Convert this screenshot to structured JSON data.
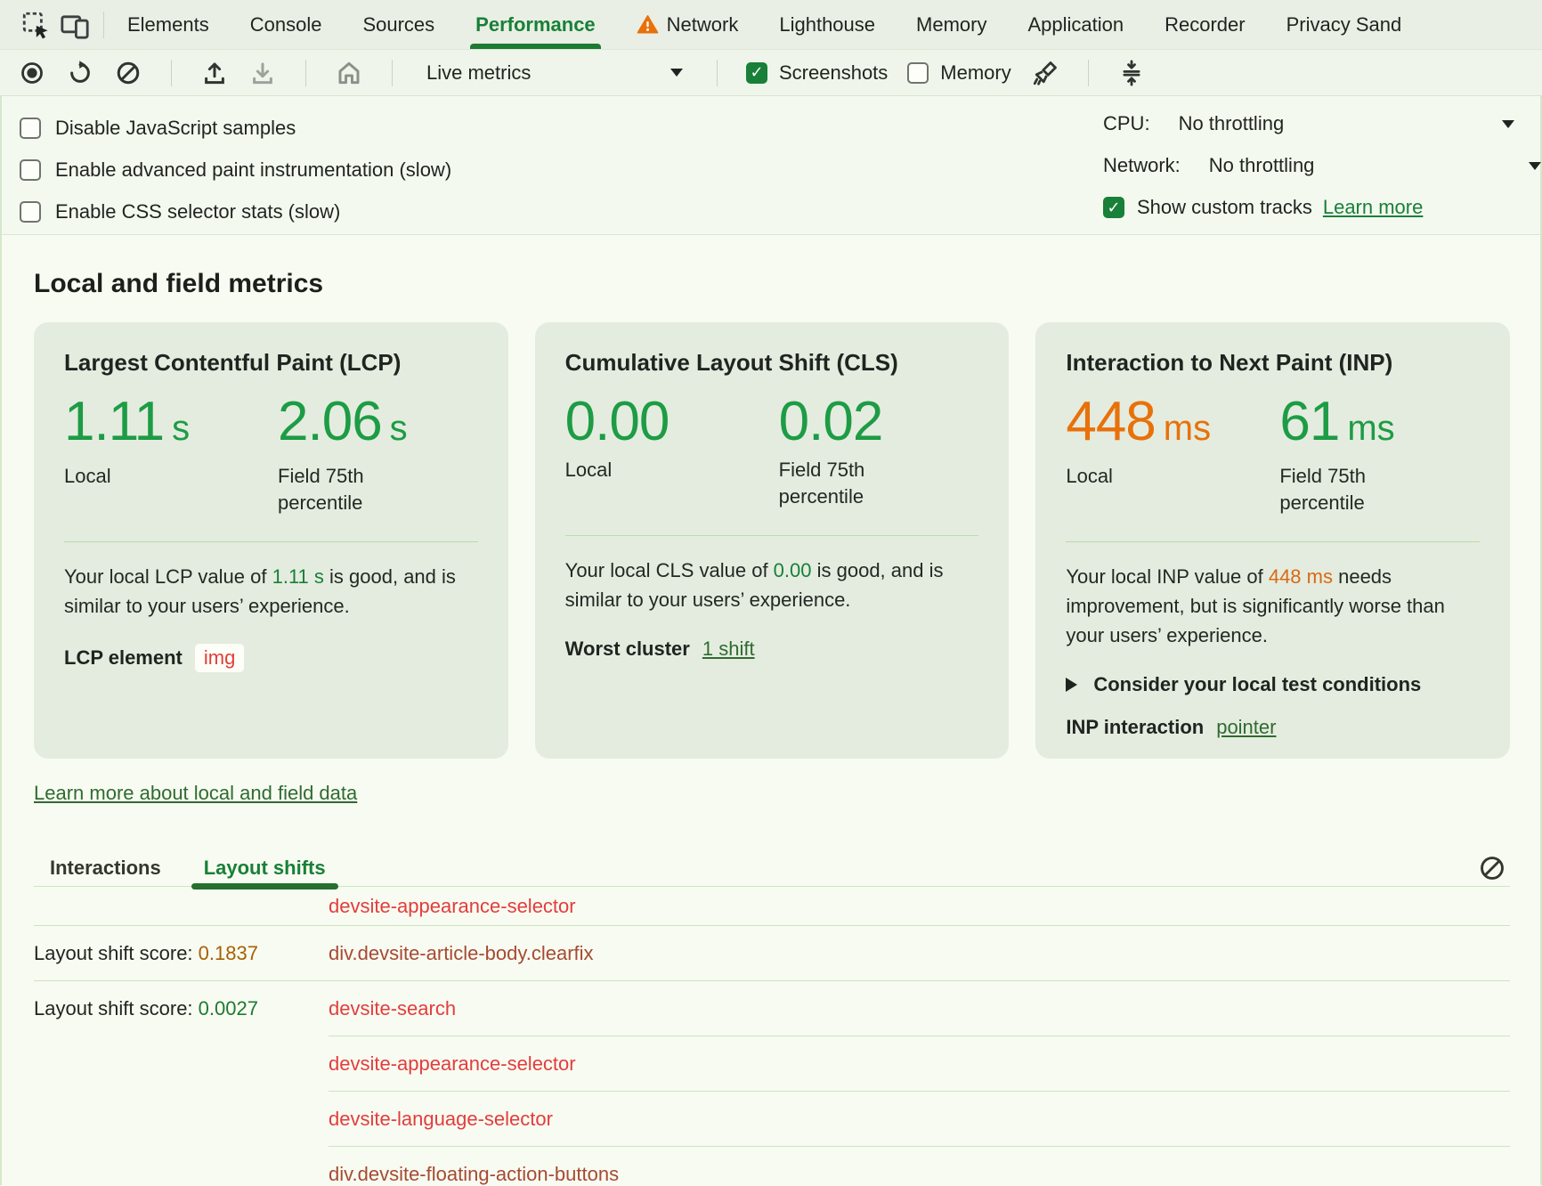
{
  "colors": {
    "accent_green": "#188038",
    "big_value_green": "#1d9c45",
    "big_value_orange": "#e8710a",
    "score_warn": "#a96000",
    "score_good": "#1d7a33",
    "node_link_red": "#e23d3d",
    "node_link_dark_red": "#a64a32",
    "card_background": "#e4ecdf",
    "panel_background": "#f8fbf1"
  },
  "tabbar": {
    "tabs": [
      "Elements",
      "Console",
      "Sources",
      "Performance",
      "Network",
      "Lighthouse",
      "Memory",
      "Application",
      "Recorder",
      "Privacy Sand"
    ],
    "active_tab": "Performance"
  },
  "toolbar": {
    "mode_selector": "Live metrics",
    "screenshots_label": "Screenshots",
    "memory_label": "Memory"
  },
  "settings": {
    "checkboxes": [
      "Disable JavaScript samples",
      "Enable advanced paint instrumentation (slow)",
      "Enable CSS selector stats (slow)"
    ],
    "cpu_label": "CPU:",
    "cpu_value": "No throttling",
    "network_label": "Network:",
    "network_value": "No throttling",
    "custom_tracks_label": "Show custom tracks",
    "custom_tracks_learn_more": "Learn more"
  },
  "metrics": {
    "heading": "Local and field metrics",
    "local_label": "Local",
    "field_label": "Field 75th percentile",
    "learn_more_link": "Learn more about local and field data",
    "cards": {
      "lcp": {
        "title": "Largest Contentful Paint (LCP)",
        "local_value": "1.11",
        "local_unit": "s",
        "field_value": "2.06",
        "field_unit": "s",
        "desc_before": "Your local LCP value of ",
        "desc_value": "1.11 s",
        "desc_after": " is good, and is similar to your users’ experience.",
        "footer_label": "LCP element",
        "footer_chip": "img"
      },
      "cls": {
        "title": "Cumulative Layout Shift (CLS)",
        "local_value": "0.00",
        "field_value": "0.02",
        "desc_before": "Your local CLS value of ",
        "desc_value": "0.00",
        "desc_after": " is good, and is similar to your users’ experience.",
        "footer_label": "Worst cluster",
        "footer_link": "1 shift"
      },
      "inp": {
        "title": "Interaction to Next Paint (INP)",
        "local_value": "448",
        "local_unit": "ms",
        "field_value": "61",
        "field_unit": "ms",
        "desc_before": "Your local INP value of ",
        "desc_value": "448 ms",
        "desc_after": " needs improvement, but is significantly worse than your users’ experience.",
        "consider_label": "Consider your local test conditions",
        "footer_label": "INP interaction",
        "footer_link": "pointer"
      }
    }
  },
  "logs": {
    "tabs": [
      "Interactions",
      "Layout shifts"
    ],
    "active_tab": "Layout shifts",
    "score_prefix": "Layout shift score: ",
    "rows": [
      {
        "score": "",
        "target": "devsite-appearance-selector",
        "tone": "bright",
        "divider": "full",
        "first": true
      },
      {
        "score": "0.1837",
        "score_tone": "warn",
        "target": "div.devsite-article-body.clearfix",
        "tone": "dark",
        "divider": "full"
      },
      {
        "score": "0.0027",
        "score_tone": "good",
        "target": "devsite-search",
        "tone": "bright",
        "divider": "indent"
      },
      {
        "score": "",
        "target": "devsite-appearance-selector",
        "tone": "bright",
        "divider": "indent"
      },
      {
        "score": "",
        "target": "devsite-language-selector",
        "tone": "bright",
        "divider": "indent"
      },
      {
        "score": "",
        "target": "div.devsite-floating-action-buttons",
        "tone": "dark",
        "divider": "none"
      }
    ]
  }
}
